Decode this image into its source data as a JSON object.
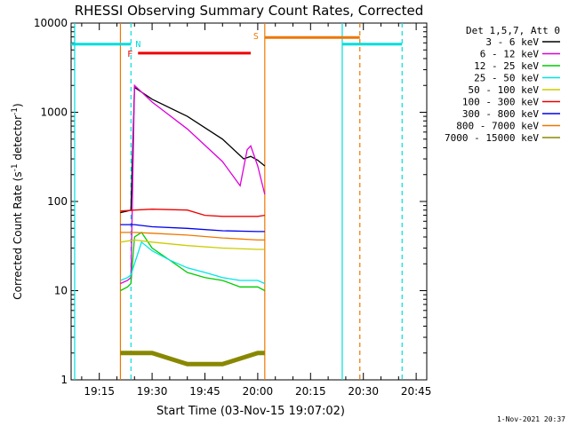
{
  "chart_data": {
    "type": "line",
    "title": "RHESSI Observing Summary Count Rates, Corrected",
    "xlabel": "Start Time (03-Nov-15 19:07:02)",
    "ylabel_main": "Corrected Count Rate (s",
    "ylabel_sup1": "-1",
    "ylabel_mid": " detector",
    "ylabel_sup2": "-1",
    "ylabel_end": ")",
    "y_scale": "log",
    "ylim": [
      1,
      10000
    ],
    "xlim": [
      "19:07:00",
      "20:48:00"
    ],
    "x_ticks": [
      "19:15",
      "19:30",
      "19:45",
      "20:00",
      "20:15",
      "20:30",
      "20:45"
    ],
    "y_ticks": [
      "1",
      "10",
      "100",
      "1000",
      "10000"
    ],
    "legend_header": "Det 1,5,7, Att 0",
    "legend_position": "right",
    "timestamp": "1-Nov-2021 20:37",
    "annotations": {
      "night": "N",
      "flare": "F",
      "saa": "S"
    },
    "markers": {
      "night_bars": [
        [
          "19:07",
          "19:24"
        ],
        [
          "20:24",
          "20:41"
        ]
      ],
      "flare_bar": [
        "19:26",
        "19:58"
      ],
      "saa_bar": [
        "20:02",
        "20:29"
      ],
      "cyan_lines": [
        "19:08",
        "20:24"
      ],
      "cyan_dashed": [
        "19:24",
        "20:41"
      ],
      "orange_lines": [
        "19:21",
        "20:02"
      ],
      "orange_dashed": [
        "20:29"
      ]
    },
    "series": [
      {
        "name": "3 - 6 keV",
        "color": "#000000",
        "points": [
          [
            "19:21",
            75
          ],
          [
            "19:23",
            78
          ],
          [
            "19:24",
            80
          ],
          [
            "19:25",
            1900
          ],
          [
            "19:30",
            1400
          ],
          [
            "19:40",
            900
          ],
          [
            "19:50",
            500
          ],
          [
            "19:56",
            300
          ],
          [
            "19:58",
            320
          ],
          [
            "20:00",
            290
          ],
          [
            "20:02",
            250
          ]
        ]
      },
      {
        "name": "6 - 12 keV",
        "color": "#dd00dd",
        "points": [
          [
            "19:21",
            12
          ],
          [
            "19:23",
            13
          ],
          [
            "19:24",
            14
          ],
          [
            "19:25",
            2000
          ],
          [
            "19:30",
            1300
          ],
          [
            "19:40",
            650
          ],
          [
            "19:50",
            280
          ],
          [
            "19:55",
            150
          ],
          [
            "19:57",
            380
          ],
          [
            "19:58",
            420
          ],
          [
            "20:00",
            250
          ],
          [
            "20:02",
            120
          ]
        ]
      },
      {
        "name": "12 - 25 keV",
        "color": "#00cc00",
        "points": [
          [
            "19:21",
            10
          ],
          [
            "19:23",
            11
          ],
          [
            "19:24",
            12
          ],
          [
            "19:25",
            40
          ],
          [
            "19:27",
            45
          ],
          [
            "19:30",
            30
          ],
          [
            "19:35",
            22
          ],
          [
            "19:40",
            16
          ],
          [
            "19:45",
            14
          ],
          [
            "19:50",
            13
          ],
          [
            "19:55",
            11
          ],
          [
            "20:00",
            11
          ],
          [
            "20:02",
            10
          ]
        ]
      },
      {
        "name": "25 - 50 keV",
        "color": "#00e5e5",
        "points": [
          [
            "19:21",
            13
          ],
          [
            "19:23",
            14
          ],
          [
            "19:24",
            15
          ],
          [
            "19:25",
            20
          ],
          [
            "19:27",
            35
          ],
          [
            "19:30",
            28
          ],
          [
            "19:35",
            22
          ],
          [
            "19:40",
            18
          ],
          [
            "19:45",
            16
          ],
          [
            "19:50",
            14
          ],
          [
            "19:55",
            13
          ],
          [
            "20:00",
            13
          ],
          [
            "20:02",
            12
          ]
        ]
      },
      {
        "name": "50 - 100 keV",
        "color": "#cccc00",
        "points": [
          [
            "19:21",
            35
          ],
          [
            "19:25",
            37
          ],
          [
            "19:30",
            35
          ],
          [
            "19:40",
            32
          ],
          [
            "19:50",
            30
          ],
          [
            "20:00",
            29
          ],
          [
            "20:02",
            29
          ]
        ]
      },
      {
        "name": "100 - 300 keV",
        "color": "#ee0000",
        "points": [
          [
            "19:21",
            78
          ],
          [
            "19:25",
            80
          ],
          [
            "19:30",
            82
          ],
          [
            "19:40",
            80
          ],
          [
            "19:45",
            70
          ],
          [
            "19:50",
            68
          ],
          [
            "20:00",
            68
          ],
          [
            "20:02",
            70
          ]
        ]
      },
      {
        "name": "300 - 800 keV",
        "color": "#0000ee",
        "points": [
          [
            "19:21",
            55
          ],
          [
            "19:25",
            55
          ],
          [
            "19:30",
            52
          ],
          [
            "19:40",
            50
          ],
          [
            "19:50",
            47
          ],
          [
            "20:00",
            46
          ],
          [
            "20:02",
            46
          ]
        ]
      },
      {
        "name": "800 - 7000 keV",
        "color": "#ee7700",
        "points": [
          [
            "19:21",
            45
          ],
          [
            "19:25",
            45
          ],
          [
            "19:30",
            44
          ],
          [
            "19:40",
            42
          ],
          [
            "19:50",
            39
          ],
          [
            "20:00",
            37
          ],
          [
            "20:02",
            37
          ]
        ]
      },
      {
        "name": "7000 - 15000 keV",
        "color": "#888800",
        "points": [
          [
            "19:21",
            2
          ],
          [
            "19:25",
            2
          ],
          [
            "19:30",
            2
          ],
          [
            "19:40",
            1.5
          ],
          [
            "19:50",
            1.5
          ],
          [
            "20:00",
            2
          ],
          [
            "20:02",
            2
          ]
        ]
      }
    ]
  }
}
